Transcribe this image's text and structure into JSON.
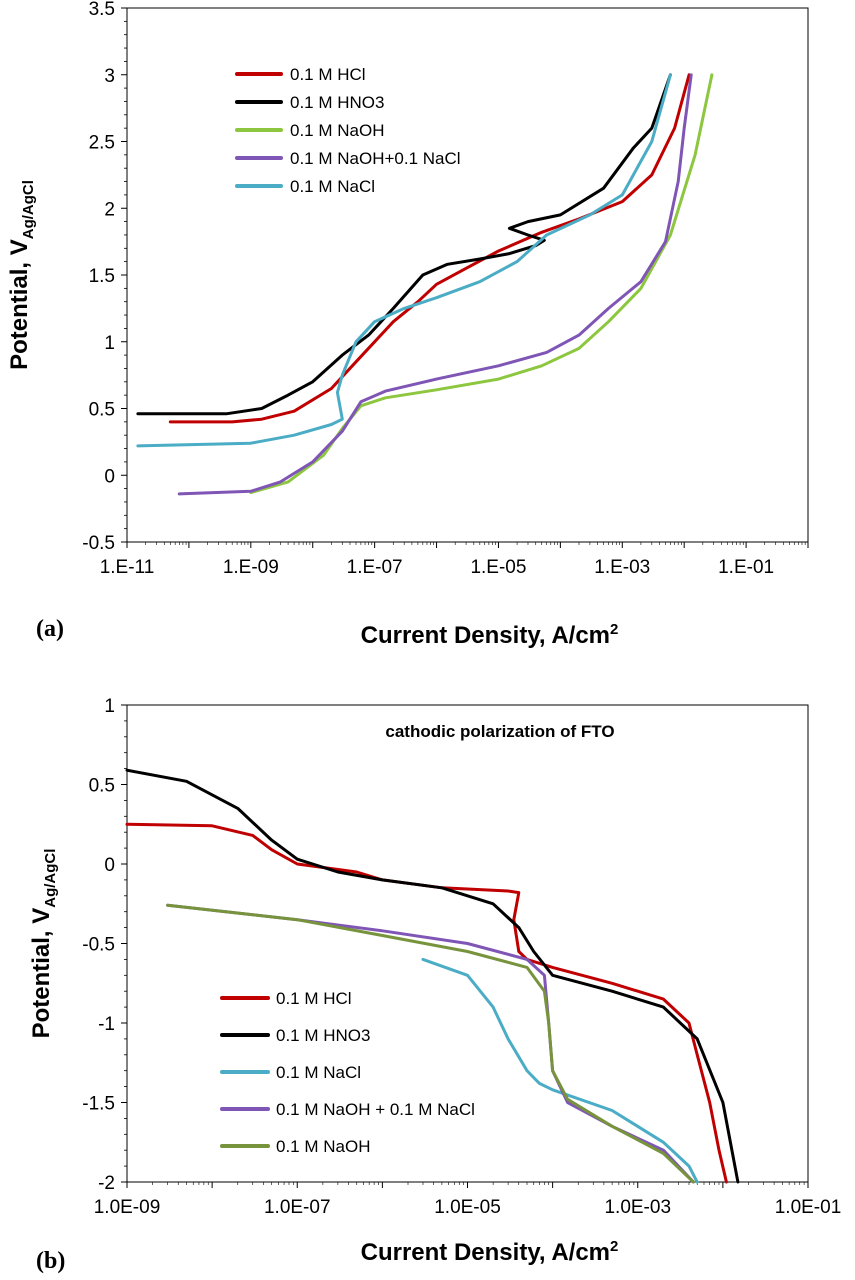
{
  "chart_data": [
    {
      "type": "line",
      "panel_label": "(a)",
      "xlabel": "Current Density, A/cm",
      "xlabel_sup": "2",
      "ylabel": "Potential, V",
      "ylabel_sub": "Ag/AgCl",
      "x_scale": "log",
      "xlim": [
        1e-11,
        1
      ],
      "ylim": [
        -0.5,
        3.5
      ],
      "x_ticks": [
        1e-11,
        1e-09,
        1e-07,
        1e-05,
        0.001,
        0.1
      ],
      "x_tick_labels": [
        "1.E-11",
        "1.E-09",
        "1.E-07",
        "1.E-05",
        "1.E-03",
        "1.E-01"
      ],
      "y_ticks": [
        -0.5,
        0,
        0.5,
        1,
        1.5,
        2,
        2.5,
        3,
        3.5
      ],
      "y_tick_labels": [
        "-0.5",
        "0",
        "0.5",
        "1",
        "1.5",
        "2",
        "2.5",
        "3",
        "3.5"
      ],
      "grid": false,
      "legend_position": "top-left",
      "series": [
        {
          "name": "0.1 M HCl",
          "color": "#c00000",
          "points": [
            [
              5e-11,
              0.4
            ],
            [
              5e-10,
              0.4
            ],
            [
              1.5e-09,
              0.42
            ],
            [
              5e-09,
              0.48
            ],
            [
              2e-08,
              0.65
            ],
            [
              5e-08,
              0.85
            ],
            [
              1e-07,
              1.0
            ],
            [
              2e-07,
              1.15
            ],
            [
              5e-07,
              1.3
            ],
            [
              1e-06,
              1.43
            ],
            [
              3e-06,
              1.55
            ],
            [
              1e-05,
              1.68
            ],
            [
              5e-05,
              1.82
            ],
            [
              0.0002,
              1.92
            ],
            [
              0.001,
              2.05
            ],
            [
              0.003,
              2.25
            ],
            [
              0.007,
              2.6
            ],
            [
              0.012,
              3.0
            ]
          ]
        },
        {
          "name": "0.1 M HNO3",
          "color": "#000000",
          "points": [
            [
              1.5e-11,
              0.46
            ],
            [
              4e-10,
              0.46
            ],
            [
              1.5e-09,
              0.5
            ],
            [
              4e-09,
              0.6
            ],
            [
              1e-08,
              0.7
            ],
            [
              3e-08,
              0.9
            ],
            [
              8e-08,
              1.05
            ],
            [
              2e-07,
              1.25
            ],
            [
              6e-07,
              1.5
            ],
            [
              1.5e-06,
              1.58
            ],
            [
              5e-06,
              1.62
            ],
            [
              1.5e-05,
              1.66
            ],
            [
              4e-05,
              1.72
            ],
            [
              5.5e-05,
              1.76
            ],
            [
              3e-05,
              1.8
            ],
            [
              1.5e-05,
              1.85
            ],
            [
              3e-05,
              1.9
            ],
            [
              0.0001,
              1.95
            ],
            [
              0.0005,
              2.15
            ],
            [
              0.0015,
              2.45
            ],
            [
              0.003,
              2.6
            ],
            [
              0.006,
              3.0
            ]
          ]
        },
        {
          "name": "0.1 M NaOH",
          "color": "#8dc63f",
          "points": [
            [
              1e-09,
              -0.13
            ],
            [
              4e-09,
              -0.05
            ],
            [
              1.5e-08,
              0.15
            ],
            [
              3e-08,
              0.35
            ],
            [
              6e-08,
              0.52
            ],
            [
              1.5e-07,
              0.58
            ],
            [
              1e-06,
              0.64
            ],
            [
              1e-05,
              0.72
            ],
            [
              5e-05,
              0.82
            ],
            [
              0.0002,
              0.95
            ],
            [
              0.0006,
              1.15
            ],
            [
              0.002,
              1.4
            ],
            [
              0.006,
              1.8
            ],
            [
              0.015,
              2.4
            ],
            [
              0.028,
              3.0
            ]
          ]
        },
        {
          "name": "0.1 M NaOH+0.1 NaCl",
          "color": "#7f55b5",
          "points": [
            [
              7e-11,
              -0.14
            ],
            [
              1e-09,
              -0.12
            ],
            [
              3e-09,
              -0.05
            ],
            [
              1e-08,
              0.1
            ],
            [
              3e-08,
              0.33
            ],
            [
              6e-08,
              0.55
            ],
            [
              1.5e-07,
              0.63
            ],
            [
              1e-06,
              0.72
            ],
            [
              1e-05,
              0.82
            ],
            [
              6e-05,
              0.92
            ],
            [
              0.0002,
              1.05
            ],
            [
              0.0006,
              1.25
            ],
            [
              0.002,
              1.45
            ],
            [
              0.005,
              1.75
            ],
            [
              0.008,
              2.2
            ],
            [
              0.01,
              2.6
            ],
            [
              0.013,
              3.0
            ]
          ]
        },
        {
          "name": "0.1 M NaCl",
          "color": "#4bacc6",
          "points": [
            [
              1.5e-11,
              0.22
            ],
            [
              1e-09,
              0.24
            ],
            [
              5e-09,
              0.3
            ],
            [
              2e-08,
              0.38
            ],
            [
              3e-08,
              0.42
            ],
            [
              2.5e-08,
              0.62
            ],
            [
              3e-08,
              0.75
            ],
            [
              5e-08,
              1.0
            ],
            [
              1e-07,
              1.15
            ],
            [
              3e-07,
              1.25
            ],
            [
              1e-06,
              1.33
            ],
            [
              5e-06,
              1.45
            ],
            [
              2e-05,
              1.6
            ],
            [
              6e-05,
              1.8
            ],
            [
              0.0003,
              1.95
            ],
            [
              0.001,
              2.1
            ],
            [
              0.003,
              2.5
            ],
            [
              0.006,
              3.0
            ]
          ]
        }
      ]
    },
    {
      "type": "line",
      "panel_label": "(b)",
      "title": "cathodic polarization of FTO",
      "xlabel": "Current Density, A/cm",
      "xlabel_sup": "2",
      "ylabel": "Potential, V",
      "ylabel_sub": "Ag/AgCl",
      "x_scale": "log",
      "xlim": [
        1e-09,
        0.1
      ],
      "ylim": [
        -2,
        1
      ],
      "x_ticks": [
        1e-09,
        1e-07,
        1e-05,
        0.001,
        0.1
      ],
      "x_tick_labels": [
        "1.0E-09",
        "1.0E-07",
        "1.0E-05",
        "1.0E-03",
        "1.0E-01"
      ],
      "y_ticks": [
        -2,
        -1.5,
        -1,
        -0.5,
        0,
        0.5,
        1
      ],
      "y_tick_labels": [
        "-2",
        "-1.5",
        "-1",
        "-0.5",
        "0",
        "0.5",
        "1"
      ],
      "grid": false,
      "legend_position": "bottom-left",
      "series": [
        {
          "name": "0.1 M HCl",
          "color": "#c00000",
          "points": [
            [
              1e-09,
              0.25
            ],
            [
              1e-08,
              0.24
            ],
            [
              3e-08,
              0.18
            ],
            [
              5e-08,
              0.09
            ],
            [
              1e-07,
              0.0
            ],
            [
              5e-07,
              -0.05
            ],
            [
              1e-06,
              -0.1
            ],
            [
              5e-06,
              -0.15
            ],
            [
              3e-05,
              -0.17
            ],
            [
              4e-05,
              -0.18
            ],
            [
              3.5e-05,
              -0.35
            ],
            [
              4e-05,
              -0.55
            ],
            [
              5e-05,
              -0.6
            ],
            [
              0.0001,
              -0.65
            ],
            [
              0.0005,
              -0.75
            ],
            [
              0.002,
              -0.85
            ],
            [
              0.004,
              -1.0
            ],
            [
              0.005,
              -1.2
            ],
            [
              0.007,
              -1.5
            ],
            [
              0.009,
              -1.8
            ],
            [
              0.011,
              -2.0
            ]
          ]
        },
        {
          "name": "0.1 M HNO3",
          "color": "#000000",
          "points": [
            [
              1e-09,
              0.59
            ],
            [
              5e-09,
              0.52
            ],
            [
              2e-08,
              0.35
            ],
            [
              5e-08,
              0.15
            ],
            [
              1e-07,
              0.03
            ],
            [
              3e-07,
              -0.05
            ],
            [
              1e-06,
              -0.1
            ],
            [
              5e-06,
              -0.15
            ],
            [
              2e-05,
              -0.25
            ],
            [
              4e-05,
              -0.4
            ],
            [
              6e-05,
              -0.55
            ],
            [
              0.0001,
              -0.7
            ],
            [
              0.0005,
              -0.8
            ],
            [
              0.002,
              -0.9
            ],
            [
              0.005,
              -1.1
            ],
            [
              0.01,
              -1.5
            ],
            [
              0.015,
              -2.0
            ]
          ]
        },
        {
          "name": "0.1 M NaCl",
          "color": "#4bacc6",
          "points": [
            [
              3e-06,
              -0.6
            ],
            [
              1e-05,
              -0.7
            ],
            [
              2e-05,
              -0.9
            ],
            [
              3e-05,
              -1.1
            ],
            [
              5e-05,
              -1.3
            ],
            [
              7e-05,
              -1.38
            ],
            [
              0.0001,
              -1.42
            ],
            [
              0.0005,
              -1.55
            ],
            [
              0.002,
              -1.75
            ],
            [
              0.004,
              -1.9
            ],
            [
              0.005,
              -2.0
            ]
          ]
        },
        {
          "name": "0.1 M NaOH + 0.1 M NaCl",
          "color": "#7f55b5",
          "points": [
            [
              3e-09,
              -0.26
            ],
            [
              1e-07,
              -0.35
            ],
            [
              1e-06,
              -0.42
            ],
            [
              1e-05,
              -0.5
            ],
            [
              5e-05,
              -0.6
            ],
            [
              8e-05,
              -0.7
            ],
            [
              9e-05,
              -1.0
            ],
            [
              0.0001,
              -1.3
            ],
            [
              0.00015,
              -1.5
            ],
            [
              0.0005,
              -1.65
            ],
            [
              0.002,
              -1.8
            ],
            [
              0.0045,
              -2.0
            ]
          ]
        },
        {
          "name": "0.1 M NaOH",
          "color": "#77933c",
          "points": [
            [
              3e-09,
              -0.26
            ],
            [
              1e-07,
              -0.35
            ],
            [
              1e-06,
              -0.45
            ],
            [
              1e-05,
              -0.55
            ],
            [
              5e-05,
              -0.65
            ],
            [
              8e-05,
              -0.8
            ],
            [
              9e-05,
              -1.0
            ],
            [
              0.0001,
              -1.3
            ],
            [
              0.00015,
              -1.48
            ],
            [
              0.0005,
              -1.65
            ],
            [
              0.002,
              -1.82
            ],
            [
              0.0045,
              -2.0
            ]
          ]
        }
      ]
    }
  ]
}
